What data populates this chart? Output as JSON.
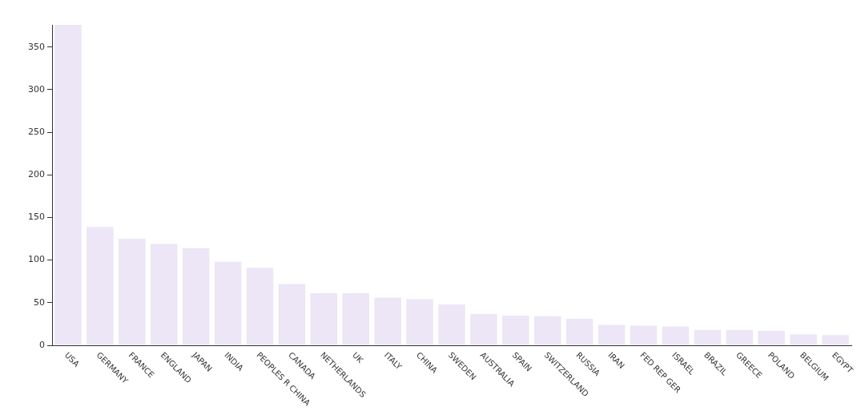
{
  "chart_data": {
    "type": "bar",
    "categories": [
      "USA",
      "GERMANY",
      "FRANCE",
      "ENGLAND",
      "JAPAN",
      "INDIA",
      "PEOPLES R CHINA",
      "CANADA",
      "NETHERLANDS",
      "UK",
      "ITALY",
      "CHINA",
      "SWEDEN",
      "AUSTRALIA",
      "SPAIN",
      "SWITZERLAND",
      "RUSSIA",
      "IRAN",
      "FED REP GER",
      "ISRAEL",
      "BRAZIL",
      "GREECE",
      "POLAND",
      "BELGIUM",
      "EGYPT"
    ],
    "values": [
      376,
      139,
      125,
      119,
      114,
      98,
      91,
      72,
      61,
      61,
      56,
      54,
      48,
      37,
      35,
      34,
      31,
      24,
      23,
      22,
      18,
      18,
      17,
      13,
      12
    ],
    "color": "#ece6f6",
    "ylim": [
      0,
      376
    ],
    "yticks": [
      0,
      50,
      100,
      150,
      200,
      250,
      300,
      350
    ],
    "grid": false,
    "legend": false
  }
}
